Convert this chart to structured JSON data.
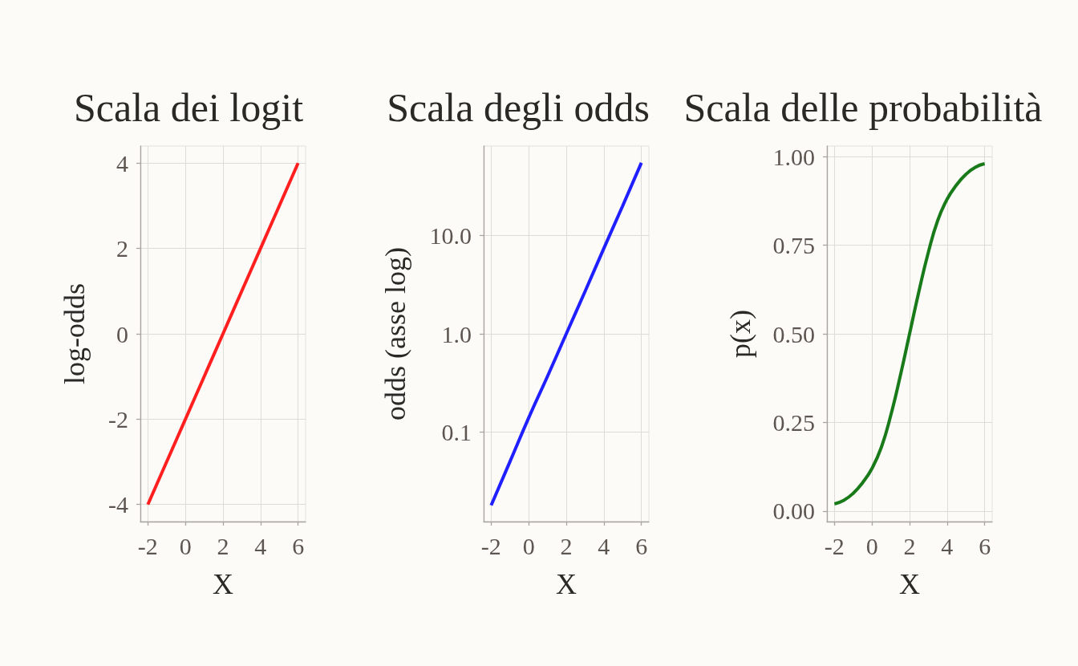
{
  "chart_data": [
    {
      "type": "line",
      "title": "Scala dei logit",
      "xlabel": "X",
      "ylabel": "log-odds",
      "x": [
        -2,
        -1,
        0,
        1,
        2,
        3,
        4,
        5,
        6
      ],
      "series": [
        {
          "color": "#ff1f1f",
          "values": [
            -4,
            -3,
            -2,
            -1,
            0,
            1,
            2,
            3,
            4
          ]
        }
      ],
      "xlim": [
        -2.4,
        6.4
      ],
      "xticks": [
        -2,
        0,
        2,
        4,
        6
      ],
      "ylim": [
        -4.4,
        4.4
      ],
      "yticks": [
        -4,
        -2,
        0,
        2,
        4
      ],
      "grid": true,
      "marker": "none",
      "line_style": "solid"
    },
    {
      "type": "line",
      "title": "Scala degli odds",
      "xlabel": "X",
      "ylabel": "odds (asse log)",
      "x": [
        -2,
        -1,
        0,
        1,
        2,
        3,
        4,
        5,
        6
      ],
      "series": [
        {
          "color": "#1f1fff",
          "values": [
            0.018,
            0.05,
            0.14,
            0.37,
            1,
            2.7,
            7.4,
            20,
            55
          ]
        }
      ],
      "xlim": [
        -2.4,
        6.4
      ],
      "xticks": [
        -2,
        0,
        2,
        4,
        6
      ],
      "ylim": [
        0.0123,
        81.5
      ],
      "yticks": [
        0.1,
        {
          "value": 1,
          "label": "1.0"
        },
        {
          "value": 10,
          "label": "10.0"
        }
      ],
      "log": true,
      "grid": true,
      "marker": "none",
      "line_style": "solid"
    },
    {
      "type": "line",
      "title": "Scala delle probabilità",
      "xlabel": "X",
      "ylabel": "p(x)",
      "x": [
        -2,
        -1.5,
        -1,
        -0.5,
        0,
        0.5,
        1,
        1.5,
        2,
        2.5,
        3,
        3.5,
        4,
        4.5,
        5,
        5.5,
        6
      ],
      "series": [
        {
          "color": "#187a18",
          "values": [
            0.02,
            0.03,
            0.05,
            0.08,
            0.12,
            0.18,
            0.27,
            0.38,
            0.5,
            0.62,
            0.73,
            0.82,
            0.88,
            0.92,
            0.95,
            0.97,
            0.98
          ]
        }
      ],
      "xlim": [
        -2.4,
        6.4
      ],
      "xticks": [
        -2,
        0,
        2,
        4,
        6
      ],
      "ylim": [
        -0.03,
        1.03
      ],
      "yticks": [
        {
          "value": 0,
          "label": "0.00"
        },
        0.25,
        {
          "value": 0.5,
          "label": "0.50"
        },
        0.75,
        {
          "value": 1,
          "label": "1.00"
        }
      ],
      "grid": true,
      "marker": "none",
      "line_style": "solid"
    }
  ]
}
